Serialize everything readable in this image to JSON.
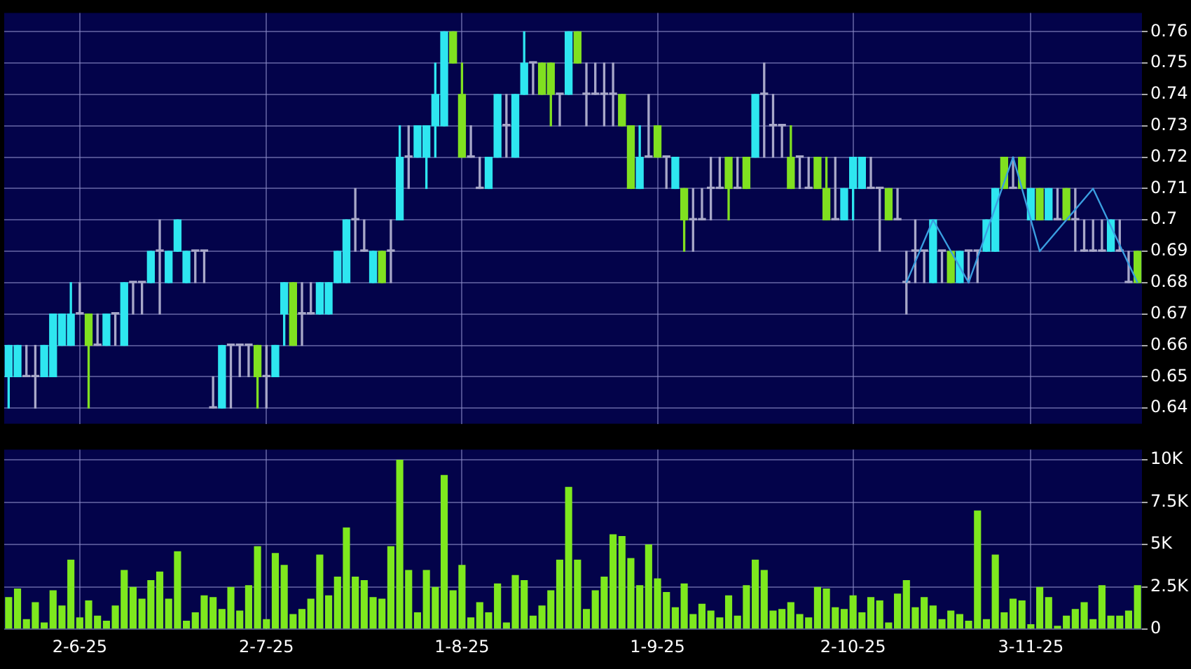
{
  "chart_data": [
    {
      "type": "candlestick",
      "grid": true,
      "tick_labels": "y",
      "categories": [
        null,
        null,
        null,
        null,
        null,
        null,
        null,
        null,
        null,
        null,
        null,
        null,
        null,
        null,
        null,
        null,
        null,
        null,
        null,
        null,
        null,
        null,
        null,
        null,
        null,
        null,
        null,
        null,
        null,
        null,
        null,
        null,
        null,
        null,
        null,
        null,
        null,
        null,
        null,
        null,
        null,
        null,
        null,
        null,
        null,
        null,
        null,
        null,
        null,
        null,
        null,
        null,
        null,
        null,
        null,
        null,
        null,
        null,
        null,
        null,
        null,
        null,
        null,
        null,
        null,
        null,
        null,
        null,
        null,
        null,
        null,
        null,
        null,
        null,
        null,
        null,
        null,
        null,
        null,
        null,
        null,
        null,
        null,
        null,
        null,
        null,
        null,
        null,
        null,
        null,
        null,
        null,
        null,
        null,
        null,
        null,
        null,
        null,
        null,
        null,
        null,
        null,
        null,
        null,
        null,
        null,
        null,
        null,
        null,
        null,
        null,
        null,
        null,
        null,
        null,
        null,
        null,
        null,
        null,
        null,
        null,
        null,
        null,
        null,
        null,
        null,
        null,
        null
      ],
      "ohlc": [
        [
          0.65,
          0.66,
          0.64,
          0.66
        ],
        [
          0.65,
          0.66,
          0.65,
          0.66
        ],
        [
          0.65,
          0.66,
          0.65,
          0.65
        ],
        [
          0.65,
          0.66,
          0.64,
          0.65
        ],
        [
          0.65,
          0.66,
          0.65,
          0.66
        ],
        [
          0.65,
          0.67,
          0.65,
          0.67
        ],
        [
          0.66,
          0.67,
          0.66,
          0.67
        ],
        [
          0.66,
          0.68,
          0.66,
          0.67
        ],
        [
          0.67,
          0.68,
          0.67,
          0.67
        ],
        [
          0.67,
          0.67,
          0.64,
          0.66
        ],
        [
          0.66,
          0.67,
          0.66,
          0.66
        ],
        [
          0.66,
          0.67,
          0.66,
          0.67
        ],
        [
          0.67,
          0.67,
          0.66,
          0.67
        ],
        [
          0.66,
          0.68,
          0.66,
          0.68
        ],
        [
          0.68,
          0.68,
          0.67,
          0.68
        ],
        [
          0.68,
          0.68,
          0.67,
          0.68
        ],
        [
          0.68,
          0.69,
          0.68,
          0.69
        ],
        [
          0.69,
          0.7,
          0.67,
          0.69
        ],
        [
          0.68,
          0.69,
          0.68,
          0.69
        ],
        [
          0.69,
          0.7,
          0.69,
          0.7
        ],
        [
          0.68,
          0.69,
          0.68,
          0.69
        ],
        [
          0.69,
          0.69,
          0.68,
          0.69
        ],
        [
          0.69,
          0.69,
          0.68,
          0.69
        ],
        [
          0.64,
          0.65,
          0.64,
          0.64
        ],
        [
          0.64,
          0.66,
          0.64,
          0.66
        ],
        [
          0.66,
          0.66,
          0.64,
          0.66
        ],
        [
          0.66,
          0.66,
          0.65,
          0.66
        ],
        [
          0.66,
          0.66,
          0.65,
          0.66
        ],
        [
          0.66,
          0.66,
          0.64,
          0.65
        ],
        [
          0.65,
          0.66,
          0.64,
          0.65
        ],
        [
          0.65,
          0.66,
          0.65,
          0.66
        ],
        [
          0.67,
          0.68,
          0.66,
          0.68
        ],
        [
          0.68,
          0.68,
          0.66,
          0.66
        ],
        [
          0.67,
          0.68,
          0.66,
          0.67
        ],
        [
          0.67,
          0.68,
          0.67,
          0.67
        ],
        [
          0.67,
          0.68,
          0.67,
          0.68
        ],
        [
          0.67,
          0.68,
          0.67,
          0.68
        ],
        [
          0.68,
          0.69,
          0.68,
          0.69
        ],
        [
          0.68,
          0.7,
          0.68,
          0.7
        ],
        [
          0.7,
          0.71,
          0.69,
          0.7
        ],
        [
          0.69,
          0.7,
          0.69,
          0.69
        ],
        [
          0.68,
          0.69,
          0.68,
          0.69
        ],
        [
          0.69,
          0.69,
          0.68,
          0.68
        ],
        [
          0.69,
          0.7,
          0.68,
          0.69
        ],
        [
          0.7,
          0.73,
          0.7,
          0.72
        ],
        [
          0.72,
          0.73,
          0.71,
          0.72
        ],
        [
          0.72,
          0.73,
          0.72,
          0.73
        ],
        [
          0.72,
          0.73,
          0.71,
          0.73
        ],
        [
          0.73,
          0.75,
          0.72,
          0.74
        ],
        [
          0.73,
          0.76,
          0.73,
          0.76
        ],
        [
          0.76,
          0.76,
          0.75,
          0.75
        ],
        [
          0.74,
          0.75,
          0.72,
          0.72
        ],
        [
          0.72,
          0.73,
          0.72,
          0.72
        ],
        [
          0.71,
          0.72,
          0.71,
          0.71
        ],
        [
          0.71,
          0.72,
          0.71,
          0.72
        ],
        [
          0.72,
          0.74,
          0.72,
          0.74
        ],
        [
          0.73,
          0.74,
          0.72,
          0.73
        ],
        [
          0.72,
          0.74,
          0.72,
          0.74
        ],
        [
          0.74,
          0.76,
          0.74,
          0.75
        ],
        [
          0.75,
          0.75,
          0.74,
          0.75
        ],
        [
          0.75,
          0.75,
          0.74,
          0.74
        ],
        [
          0.75,
          0.75,
          0.73,
          0.74
        ],
        [
          0.74,
          0.74,
          0.73,
          0.74
        ],
        [
          0.74,
          0.76,
          0.74,
          0.76
        ],
        [
          0.76,
          0.76,
          0.75,
          0.75
        ],
        [
          0.74,
          0.75,
          0.73,
          0.74
        ],
        [
          0.74,
          0.75,
          0.74,
          0.74
        ],
        [
          0.74,
          0.75,
          0.73,
          0.74
        ],
        [
          0.74,
          0.75,
          0.73,
          0.74
        ],
        [
          0.74,
          0.74,
          0.73,
          0.73
        ],
        [
          0.73,
          0.73,
          0.71,
          0.71
        ],
        [
          0.71,
          0.73,
          0.71,
          0.72
        ],
        [
          0.72,
          0.74,
          0.72,
          0.72
        ],
        [
          0.73,
          0.73,
          0.72,
          0.72
        ],
        [
          0.72,
          0.72,
          0.71,
          0.72
        ],
        [
          0.71,
          0.72,
          0.71,
          0.72
        ],
        [
          0.71,
          0.71,
          0.69,
          0.7
        ],
        [
          0.7,
          0.71,
          0.69,
          0.7
        ],
        [
          0.7,
          0.71,
          0.7,
          0.7
        ],
        [
          0.71,
          0.72,
          0.7,
          0.71
        ],
        [
          0.71,
          0.72,
          0.71,
          0.71
        ],
        [
          0.72,
          0.72,
          0.7,
          0.71
        ],
        [
          0.71,
          0.72,
          0.71,
          0.71
        ],
        [
          0.72,
          0.72,
          0.71,
          0.71
        ],
        [
          0.72,
          0.74,
          0.72,
          0.74
        ],
        [
          0.74,
          0.75,
          0.72,
          0.74
        ],
        [
          0.73,
          0.74,
          0.72,
          0.73
        ],
        [
          0.73,
          0.73,
          0.72,
          0.73
        ],
        [
          0.72,
          0.73,
          0.71,
          0.71
        ],
        [
          0.72,
          0.72,
          0.71,
          0.72
        ],
        [
          0.71,
          0.72,
          0.71,
          0.71
        ],
        [
          0.72,
          0.72,
          0.71,
          0.71
        ],
        [
          0.71,
          0.72,
          0.7,
          0.7
        ],
        [
          0.7,
          0.72,
          0.7,
          0.7
        ],
        [
          0.7,
          0.71,
          0.7,
          0.71
        ],
        [
          0.71,
          0.72,
          0.7,
          0.72
        ],
        [
          0.71,
          0.72,
          0.71,
          0.72
        ],
        [
          0.71,
          0.72,
          0.71,
          0.71
        ],
        [
          0.71,
          0.71,
          0.69,
          0.71
        ],
        [
          0.71,
          0.71,
          0.7,
          0.7
        ],
        [
          0.7,
          0.71,
          0.7,
          0.7
        ],
        [
          0.68,
          0.69,
          0.67,
          0.68
        ],
        [
          0.69,
          0.7,
          0.68,
          0.69
        ],
        [
          0.69,
          0.69,
          0.68,
          0.69
        ],
        [
          0.68,
          0.7,
          0.68,
          0.7
        ],
        [
          0.69,
          0.69,
          0.68,
          0.69
        ],
        [
          0.69,
          0.69,
          0.68,
          0.68
        ],
        [
          0.68,
          0.69,
          0.68,
          0.69
        ],
        [
          0.69,
          0.69,
          0.68,
          0.69
        ],
        [
          0.69,
          0.69,
          0.68,
          0.69
        ],
        [
          0.69,
          0.7,
          0.69,
          0.7
        ],
        [
          0.69,
          0.71,
          0.69,
          0.71
        ],
        [
          0.72,
          0.72,
          0.71,
          0.71
        ],
        [
          0.71,
          0.72,
          0.71,
          0.71
        ],
        [
          0.72,
          0.72,
          0.71,
          0.71
        ],
        [
          0.7,
          0.71,
          0.7,
          0.71
        ],
        [
          0.71,
          0.71,
          0.7,
          0.7
        ],
        [
          0.7,
          0.71,
          0.7,
          0.71
        ],
        [
          0.7,
          0.71,
          0.7,
          0.7
        ],
        [
          0.71,
          0.71,
          0.7,
          0.7
        ],
        [
          0.7,
          0.71,
          0.69,
          0.7
        ],
        [
          0.69,
          0.7,
          0.69,
          0.69
        ],
        [
          0.69,
          0.7,
          0.69,
          0.69
        ],
        [
          0.69,
          0.7,
          0.69,
          0.69
        ],
        [
          0.69,
          0.7,
          0.69,
          0.7
        ],
        [
          0.69,
          0.7,
          0.69,
          0.69
        ],
        [
          0.68,
          0.69,
          0.68,
          0.68
        ],
        [
          0.69,
          0.69,
          0.68,
          0.68
        ]
      ],
      "series": [
        {
          "type": "line",
          "color": "#3a9ee0",
          "values": [
            null,
            null,
            null,
            null,
            null,
            null,
            null,
            null,
            null,
            null,
            null,
            null,
            null,
            null,
            null,
            null,
            null,
            null,
            null,
            null,
            null,
            null,
            null,
            null,
            null,
            null,
            null,
            null,
            null,
            null,
            null,
            null,
            null,
            null,
            null,
            null,
            null,
            null,
            null,
            null,
            null,
            null,
            null,
            null,
            null,
            null,
            null,
            null,
            null,
            null,
            null,
            null,
            null,
            null,
            null,
            null,
            null,
            null,
            null,
            null,
            null,
            null,
            null,
            null,
            null,
            null,
            null,
            null,
            null,
            null,
            null,
            null,
            null,
            null,
            null,
            null,
            null,
            null,
            null,
            null,
            null,
            null,
            null,
            null,
            null,
            null,
            null,
            null,
            null,
            null,
            null,
            null,
            null,
            null,
            null,
            null,
            null,
            null,
            null,
            null,
            null,
            0.68,
            null,
            null,
            0.7,
            null,
            null,
            null,
            0.68,
            null,
            null,
            null,
            null,
            0.72,
            null,
            null,
            0.69,
            null,
            null,
            null,
            null,
            null,
            0.71,
            null,
            null,
            null,
            null,
            0.68
          ]
        }
      ],
      "ylim": [
        0.635,
        0.766
      ],
      "yticks": [
        0.64,
        0.65,
        0.66,
        0.67,
        0.68,
        0.69,
        0.7,
        0.71,
        0.72,
        0.73,
        0.74,
        0.75,
        0.76
      ]
    },
    {
      "type": "bar",
      "grid": true,
      "color": "#7ee81e",
      "categories": [
        null,
        null,
        null,
        null,
        null,
        null,
        null,
        null,
        "2-6-25",
        null,
        null,
        null,
        null,
        null,
        null,
        null,
        null,
        null,
        null,
        null,
        null,
        null,
        null,
        null,
        null,
        null,
        null,
        null,
        null,
        "2-7-25",
        null,
        null,
        null,
        null,
        null,
        null,
        null,
        null,
        null,
        null,
        null,
        null,
        null,
        null,
        null,
        null,
        null,
        null,
        null,
        null,
        null,
        "1-8-25",
        null,
        null,
        null,
        null,
        null,
        null,
        null,
        null,
        null,
        null,
        null,
        null,
        null,
        null,
        null,
        null,
        null,
        null,
        null,
        null,
        null,
        "1-9-25",
        null,
        null,
        null,
        null,
        null,
        null,
        null,
        null,
        null,
        null,
        null,
        null,
        null,
        null,
        null,
        null,
        null,
        null,
        null,
        null,
        null,
        "2-10-25",
        null,
        null,
        null,
        null,
        null,
        null,
        null,
        null,
        null,
        null,
        null,
        null,
        null,
        null,
        null,
        null,
        null,
        null,
        null,
        "3-11-25",
        null,
        null,
        null,
        null,
        null,
        null,
        null,
        null,
        null,
        null,
        null,
        null
      ],
      "values": [
        1900,
        2400,
        600,
        1600,
        400,
        2300,
        1400,
        4100,
        700,
        1700,
        800,
        500,
        1400,
        3500,
        2500,
        1800,
        2900,
        3400,
        1800,
        4600,
        500,
        1000,
        2000,
        1900,
        1200,
        2500,
        1100,
        2600,
        4900,
        600,
        4500,
        3800,
        900,
        1200,
        1800,
        4400,
        2000,
        3100,
        6000,
        3100,
        2900,
        1900,
        1800,
        4900,
        10000,
        3500,
        1000,
        3500,
        2500,
        9100,
        2300,
        3800,
        700,
        1600,
        1000,
        2700,
        400,
        3200,
        2900,
        800,
        1400,
        2300,
        4100,
        8400,
        4100,
        1200,
        2300,
        3100,
        5600,
        5500,
        4200,
        2600,
        5000,
        3000,
        2200,
        1300,
        2700,
        900,
        1500,
        1100,
        700,
        2000,
        800,
        2600,
        4100,
        3500,
        1100,
        1200,
        1600,
        900,
        700,
        2500,
        2400,
        1300,
        1200,
        2000,
        1000,
        1900,
        1700,
        400,
        2100,
        2900,
        1300,
        1900,
        1400,
        600,
        1100,
        900,
        500,
        7000,
        600,
        4400,
        1000,
        1800,
        1700,
        300,
        2500,
        1900,
        200,
        800,
        1200,
        1600,
        600,
        2600,
        800,
        800,
        1100,
        2600
      ],
      "ylim": [
        0,
        10600
      ],
      "yticks": [
        {
          "value": 0,
          "label": "0"
        },
        {
          "value": 2500,
          "label": "2.5K"
        },
        {
          "value": 5000,
          "label": "5K"
        },
        {
          "value": 7500,
          "label": "7.5K"
        },
        {
          "value": 10000,
          "label": "10K"
        }
      ]
    }
  ]
}
